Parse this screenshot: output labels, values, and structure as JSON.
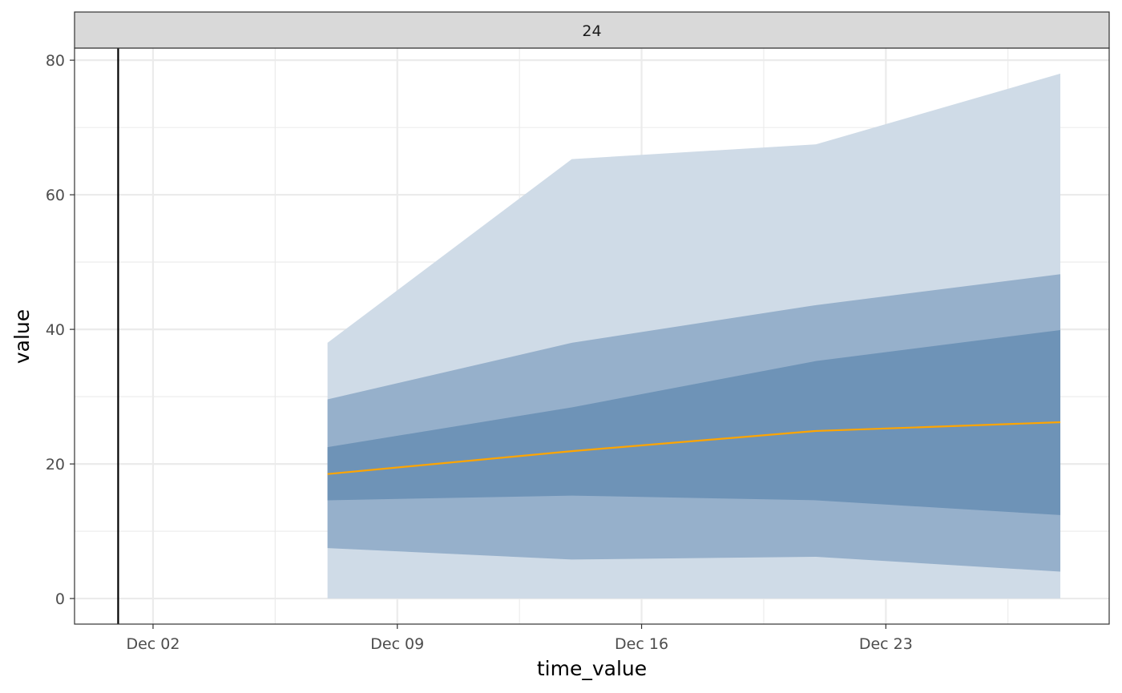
{
  "chart_data": {
    "type": "area",
    "facet_label": "24",
    "xlabel": "time_value",
    "ylabel": "value",
    "x_ticks": [
      "Dec 02",
      "Dec 09",
      "Dec 16",
      "Dec 23"
    ],
    "x_tick_days": [
      2,
      9,
      16,
      23
    ],
    "x_range_days": [
      -0.25,
      29.4
    ],
    "ylim": [
      -3.8,
      81.8
    ],
    "y_ticks": [
      0,
      20,
      40,
      60,
      80
    ],
    "grid": true,
    "reference_line_day": 1,
    "x_days": [
      7,
      14,
      21,
      28
    ],
    "bands": [
      {
        "lower": [
          0,
          0,
          0,
          0
        ],
        "upper": [
          38,
          65.3,
          67.5,
          78
        ]
      },
      {
        "lower": [
          7.5,
          5.8,
          6.2,
          4.0
        ],
        "upper": [
          29.6,
          38.0,
          43.6,
          48.2
        ]
      },
      {
        "lower": [
          14.6,
          15.3,
          14.6,
          12.4
        ],
        "upper": [
          22.5,
          28.4,
          35.3,
          39.9
        ]
      }
    ],
    "median": [
      18.5,
      21.9,
      24.9,
      26.2
    ],
    "colors": {
      "band_outer": "#cfdbe7",
      "band_middle": "#96b0cb",
      "band_inner": "#6e93b7",
      "median": "#ffa500",
      "reference_line": "#000000",
      "strip_fill": "#d9d9d9"
    }
  }
}
